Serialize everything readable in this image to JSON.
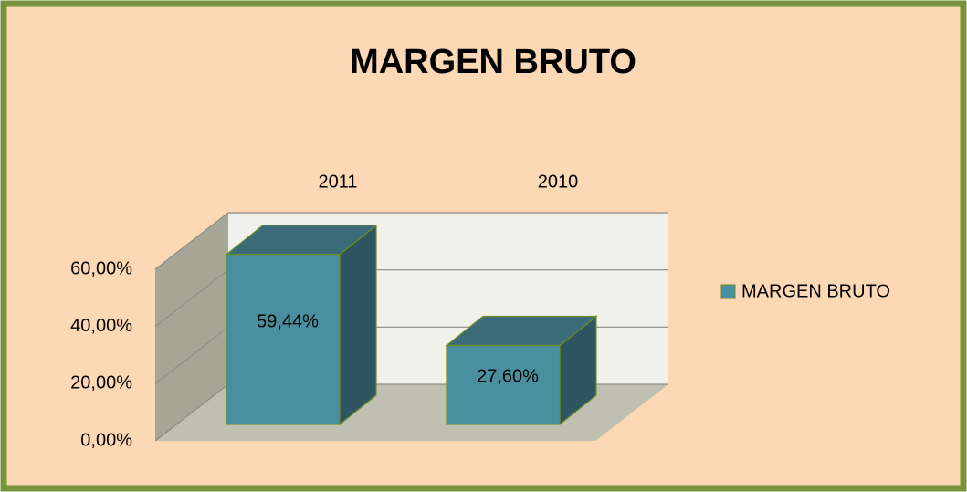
{
  "chart_data": {
    "type": "bar3d",
    "title": "MARGEN BRUTO",
    "categories": [
      "2011",
      "2010"
    ],
    "series": [
      {
        "name": "MARGEN BRUTO",
        "color": "#4a8fa0",
        "values": [
          59.44,
          27.6
        ],
        "value_labels": [
          "59,44%",
          "27,60%"
        ]
      }
    ],
    "ylim": [
      0,
      60
    ],
    "yticks": [
      {
        "value": 0,
        "label": "0,00%"
      },
      {
        "value": 20,
        "label": "20,00%"
      },
      {
        "value": 40,
        "label": "40,00%"
      },
      {
        "value": 60,
        "label": "60,00%"
      }
    ],
    "grid": true,
    "legend": "right"
  }
}
